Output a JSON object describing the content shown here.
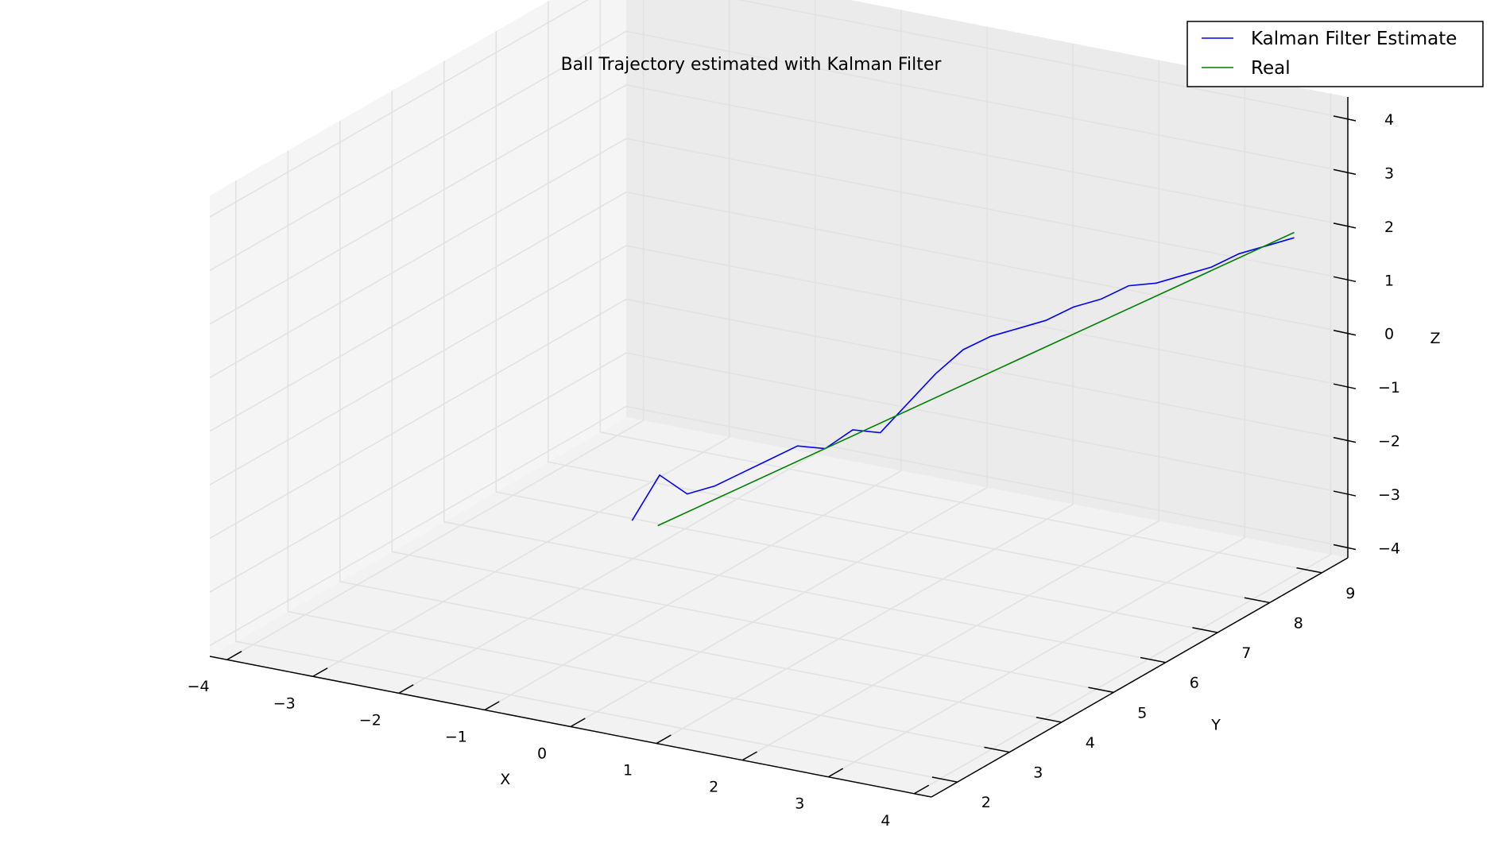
{
  "chart_data": {
    "type": "line",
    "projection": "3d",
    "title": "Ball Trajectory estimated with Kalman Filter",
    "xlabel": "X",
    "ylabel": "Y",
    "zlabel": "Z",
    "xlim": [
      -4.2,
      4.2
    ],
    "ylim": [
      1.5,
      9.5
    ],
    "zlim": [
      -4.2,
      4.4
    ],
    "xticks": [
      "−4",
      "−3",
      "−2",
      "−1",
      "0",
      "1",
      "2",
      "3",
      "4"
    ],
    "yticks": [
      "2",
      "3",
      "4",
      "5",
      "6",
      "7",
      "8",
      "9"
    ],
    "zticks": [
      "−4",
      "−3",
      "−2",
      "−1",
      "0",
      "1",
      "2",
      "3",
      "4"
    ],
    "xtick_values": [
      -4,
      -3,
      -2,
      -1,
      0,
      1,
      2,
      3,
      4
    ],
    "ytick_values": [
      2,
      3,
      4,
      5,
      6,
      7,
      8,
      9
    ],
    "ztick_values": [
      -4,
      -3,
      -2,
      -1,
      0,
      1,
      2,
      3,
      4
    ],
    "grid": true,
    "legend_position": "top-right",
    "series": [
      {
        "name": "Kalman Filter Estimate",
        "color": "#0000ff",
        "x": [
          -0.8,
          -0.6,
          -0.4,
          -0.2,
          0.0,
          0.2,
          0.4,
          0.6,
          0.8,
          1.0,
          1.2,
          1.4,
          1.6,
          1.8,
          2.0,
          2.2,
          2.4,
          2.6,
          2.8,
          3.0,
          3.2,
          3.4,
          3.6,
          3.8,
          4.0
        ],
        "y": [
          4.0,
          4.2,
          4.4,
          4.6,
          4.8,
          5.0,
          5.2,
          5.4,
          5.6,
          5.8,
          6.0,
          6.2,
          6.4,
          6.6,
          6.8,
          7.0,
          7.2,
          7.4,
          7.6,
          7.8,
          8.0,
          8.2,
          8.4,
          8.6,
          8.8
        ],
        "z": [
          -2.0,
          -1.2,
          -1.6,
          -1.5,
          -1.3,
          -1.1,
          -0.9,
          -1.0,
          -0.7,
          -0.8,
          -0.3,
          0.2,
          0.6,
          0.8,
          0.9,
          1.0,
          1.2,
          1.3,
          1.5,
          1.5,
          1.6,
          1.7,
          1.9,
          2.0,
          2.1
        ]
      },
      {
        "name": "Real",
        "color": "#008000",
        "x": [
          -0.5,
          4.0
        ],
        "y": [
          4.0,
          8.8
        ],
        "z": [
          -2.0,
          2.2
        ]
      }
    ]
  }
}
